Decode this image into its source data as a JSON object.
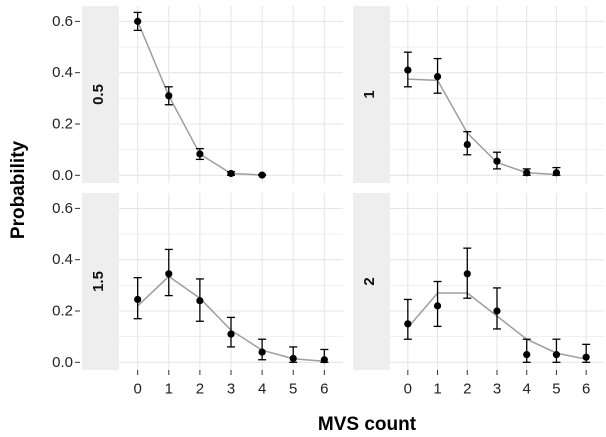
{
  "colors": {
    "panel_bg": "#ffffff",
    "grid": "#e6e6e6",
    "strip_bg": "#eeeeee",
    "fit_line": "#9e9e9e",
    "point": "#000000"
  },
  "chart_data": {
    "type": "scatter",
    "layout": "facet-grid-2x2",
    "xlabel": "MVS count",
    "ylabel": "Probability",
    "xlim": [
      -0.6,
      6.6
    ],
    "ylim": [
      -0.03,
      0.66
    ],
    "x_ticks": [
      "0",
      "1",
      "2",
      "3",
      "4",
      "5",
      "6"
    ],
    "y_ticks": [
      "0.0",
      "0.2",
      "0.4",
      "0.6"
    ],
    "grid": true,
    "legend": "none",
    "facets": [
      {
        "label": "0.5",
        "points": [
          {
            "x": 0,
            "y": 0.6,
            "lo": 0.565,
            "hi": 0.635
          },
          {
            "x": 1,
            "y": 0.31,
            "lo": 0.275,
            "hi": 0.345
          },
          {
            "x": 2,
            "y": 0.083,
            "lo": 0.062,
            "hi": 0.104
          },
          {
            "x": 3,
            "y": 0.007,
            "lo": 0.0,
            "hi": 0.014
          },
          {
            "x": 4,
            "y": 0.001,
            "lo": 0.0,
            "hi": 0.003
          }
        ],
        "fit": [
          [
            0,
            0.6
          ],
          [
            1,
            0.31
          ],
          [
            2,
            0.083
          ],
          [
            3,
            0.007
          ],
          [
            4,
            0.001
          ]
        ]
      },
      {
        "label": "1",
        "points": [
          {
            "x": 0,
            "y": 0.41,
            "lo": 0.345,
            "hi": 0.48
          },
          {
            "x": 1,
            "y": 0.385,
            "lo": 0.32,
            "hi": 0.455
          },
          {
            "x": 2,
            "y": 0.12,
            "lo": 0.08,
            "hi": 0.17
          },
          {
            "x": 3,
            "y": 0.055,
            "lo": 0.025,
            "hi": 0.09
          },
          {
            "x": 4,
            "y": 0.01,
            "lo": 0.0,
            "hi": 0.025
          },
          {
            "x": 5,
            "y": 0.01,
            "lo": 0.0,
            "hi": 0.03
          }
        ],
        "fit": [
          [
            0,
            0.375
          ],
          [
            1,
            0.37
          ],
          [
            2,
            0.165
          ],
          [
            3,
            0.05
          ],
          [
            4,
            0.01
          ],
          [
            5,
            0.003
          ]
        ]
      },
      {
        "label": "1.5",
        "points": [
          {
            "x": 0,
            "y": 0.245,
            "lo": 0.17,
            "hi": 0.33
          },
          {
            "x": 1,
            "y": 0.345,
            "lo": 0.26,
            "hi": 0.44
          },
          {
            "x": 2,
            "y": 0.24,
            "lo": 0.16,
            "hi": 0.325
          },
          {
            "x": 3,
            "y": 0.11,
            "lo": 0.06,
            "hi": 0.175
          },
          {
            "x": 4,
            "y": 0.04,
            "lo": 0.01,
            "hi": 0.09
          },
          {
            "x": 5,
            "y": 0.015,
            "lo": 0.0,
            "hi": 0.06
          },
          {
            "x": 6,
            "y": 0.01,
            "lo": 0.0,
            "hi": 0.05
          }
        ],
        "fit": [
          [
            0,
            0.22
          ],
          [
            1,
            0.335
          ],
          [
            2,
            0.25
          ],
          [
            3,
            0.125
          ],
          [
            4,
            0.047
          ],
          [
            5,
            0.014
          ],
          [
            6,
            0.004
          ]
        ]
      },
      {
        "label": "2",
        "points": [
          {
            "x": 0,
            "y": 0.15,
            "lo": 0.09,
            "hi": 0.245
          },
          {
            "x": 1,
            "y": 0.22,
            "lo": 0.14,
            "hi": 0.315
          },
          {
            "x": 2,
            "y": 0.345,
            "lo": 0.25,
            "hi": 0.445
          },
          {
            "x": 3,
            "y": 0.2,
            "lo": 0.13,
            "hi": 0.29
          },
          {
            "x": 4,
            "y": 0.03,
            "lo": 0.0,
            "hi": 0.09
          },
          {
            "x": 5,
            "y": 0.03,
            "lo": 0.0,
            "hi": 0.09
          },
          {
            "x": 6,
            "y": 0.02,
            "lo": 0.0,
            "hi": 0.07
          }
        ],
        "fit": [
          [
            0,
            0.135
          ],
          [
            1,
            0.27
          ],
          [
            2,
            0.27
          ],
          [
            3,
            0.18
          ],
          [
            4,
            0.09
          ],
          [
            5,
            0.036
          ],
          [
            6,
            0.012
          ]
        ]
      }
    ]
  }
}
